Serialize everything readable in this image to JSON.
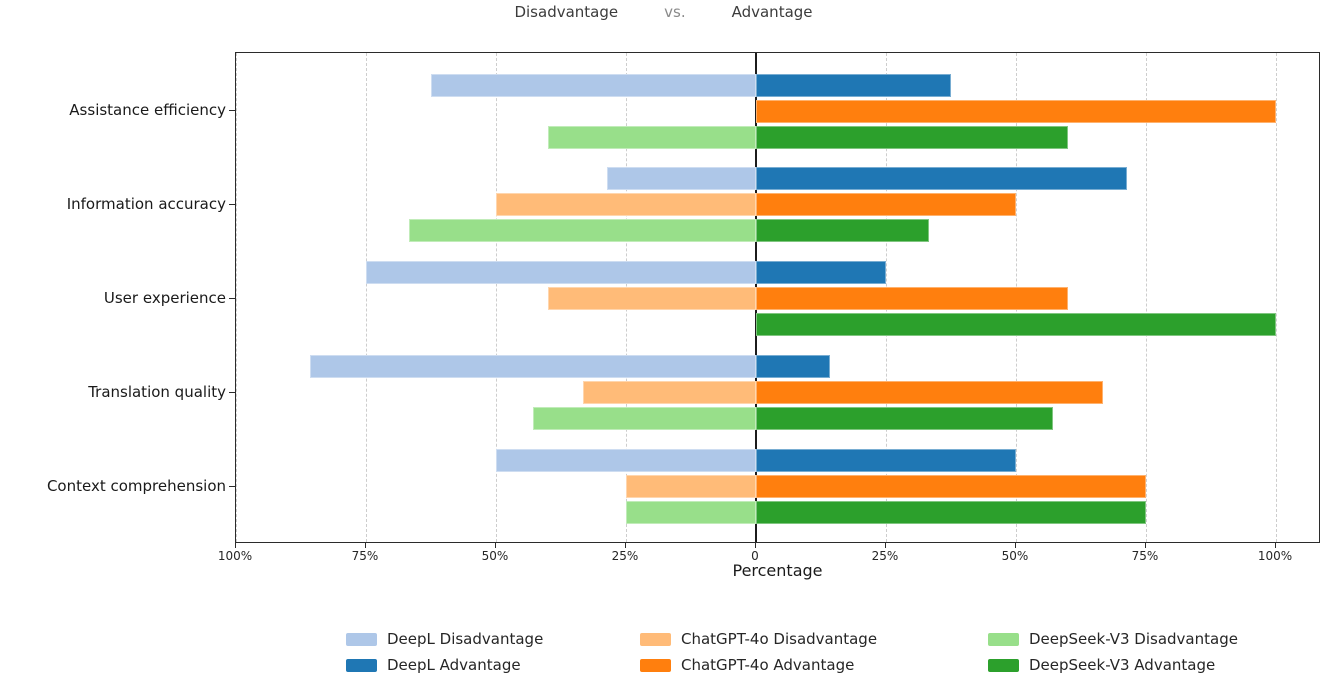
{
  "title": {
    "left": "Disadvantage",
    "middle": "vs.",
    "right": "Advantage"
  },
  "xlabel": "Percentage",
  "x_ticks": [
    "100%",
    "75%",
    "50%",
    "25%",
    "0",
    "25%",
    "50%",
    "75%",
    "100%"
  ],
  "chart_data": {
    "type": "bar",
    "orientation": "horizontal-diverging",
    "title": "Disadvantage vs. Advantage",
    "xlabel": "Percentage",
    "categories": [
      "Assistance efficiency",
      "Information accuracy",
      "User experience",
      "Translation quality",
      "Context comprehension"
    ],
    "series": [
      {
        "name": "DeepL Disadvantage",
        "side": "left",
        "color": "#aec7e8",
        "values": [
          62.5,
          28.6,
          75,
          85.7,
          50
        ]
      },
      {
        "name": "DeepL Advantage",
        "side": "right",
        "color": "#1f77b4",
        "values": [
          37.5,
          71.4,
          25,
          14.3,
          50
        ]
      },
      {
        "name": "ChatGPT-4o Disadvantage",
        "side": "left",
        "color": "#ffbb78",
        "values": [
          0,
          50,
          40,
          33.3,
          25
        ]
      },
      {
        "name": "ChatGPT-4o Advantage",
        "side": "right",
        "color": "#ff7f0e",
        "values": [
          100,
          50,
          60,
          66.7,
          75
        ]
      },
      {
        "name": "DeepSeek-V3 Disadvantage",
        "side": "left",
        "color": "#98df8a",
        "values": [
          40,
          66.7,
          0,
          42.9,
          25
        ]
      },
      {
        "name": "DeepSeek-V3 Advantage",
        "side": "right",
        "color": "#2ca02c",
        "values": [
          60,
          33.3,
          100,
          57.1,
          75
        ]
      }
    ],
    "x_tick_values": [
      -100,
      -75,
      -50,
      -25,
      0,
      25,
      50,
      75,
      100
    ],
    "xlim": [
      -100,
      108.7
    ],
    "grid": "vertical dashed at 25% steps",
    "zero_line": true,
    "legend_position": "bottom-center",
    "colors": {
      "deepl_disadvantage": "#aec7e8",
      "deepl_advantage": "#1f77b4",
      "chatgpt_disadvantage": "#ffbb78",
      "chatgpt_advantage": "#ff7f0e",
      "deepseek_disadvantage": "#98df8a",
      "deepseek_advantage": "#2ca02c"
    }
  }
}
